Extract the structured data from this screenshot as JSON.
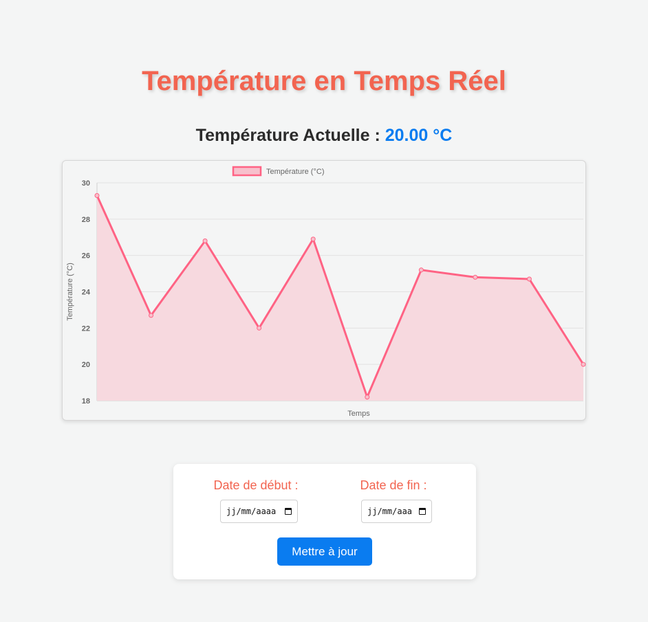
{
  "page": {
    "title": "Température en Temps Réel",
    "current_label": "Température Actuelle : ",
    "current_value": "20.00 °C"
  },
  "form": {
    "start_label": "Date de début :",
    "end_label": "Date de fin :",
    "start_placeholder": "jj/mm/aaaa",
    "end_placeholder": "jj/mm/aaa",
    "update_button": "Mettre à jour"
  },
  "colors": {
    "accent": "#f26450",
    "primary": "#0a7cf0",
    "line": "#ff6384",
    "fill": "#f7d9df"
  },
  "chart_data": {
    "type": "line",
    "legend": "Température (°C)",
    "legend_position": "top",
    "xlabel": "Temps",
    "ylabel": "Température (°C)",
    "ylim": [
      18,
      30
    ],
    "yticks": [
      18,
      20,
      22,
      24,
      26,
      28,
      30
    ],
    "grid": true,
    "fill": true,
    "series": [
      {
        "name": "Température (°C)",
        "values": [
          29.3,
          22.7,
          26.8,
          22.0,
          26.9,
          18.2,
          25.2,
          24.8,
          24.7,
          20.0
        ]
      }
    ]
  }
}
